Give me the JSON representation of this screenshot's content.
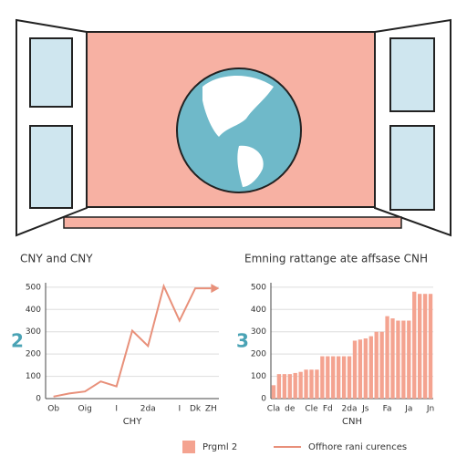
{
  "chart_data": [
    {
      "type": "line",
      "title": "CNY and CNY",
      "x_label": "CHY",
      "panel": "2",
      "categories": [
        "Ob",
        null,
        "Oig",
        null,
        "I",
        null,
        "2da",
        null,
        "I",
        "Dk",
        "ZH"
      ],
      "series": [
        {
          "name": "Offhore rani curences",
          "color": "#e8907a",
          "values": [
            9,
            23,
            32,
            77,
            55,
            305,
            236,
            505,
            350,
            495,
            495
          ]
        }
      ],
      "ylim": [
        0,
        520
      ],
      "yticks": [
        0,
        100,
        200,
        300,
        400,
        500
      ]
    },
    {
      "type": "bar",
      "title": "Emning rattange ate affsase CNH",
      "x_label": "CNH",
      "panel": "3",
      "categories": [
        "Cla",
        null,
        null,
        "de",
        null,
        null,
        null,
        "Cle",
        null,
        null,
        "Fd",
        null,
        null,
        null,
        "2da",
        null,
        null,
        "Js",
        null,
        null,
        null,
        "Fa",
        null,
        null,
        null,
        "Ja",
        null,
        null,
        null,
        "Jn"
      ],
      "series": [
        {
          "name": "Prgml 2",
          "color": "#f4a390",
          "values": [
            60,
            110,
            110,
            110,
            115,
            120,
            130,
            130,
            130,
            190,
            190,
            190,
            190,
            190,
            190,
            260,
            265,
            270,
            280,
            300,
            300,
            370,
            360,
            350,
            350,
            350,
            480,
            470,
            470,
            470
          ]
        }
      ],
      "ylim": [
        0,
        520
      ],
      "yticks": [
        0,
        100,
        200,
        300,
        400,
        500
      ]
    }
  ]
}
